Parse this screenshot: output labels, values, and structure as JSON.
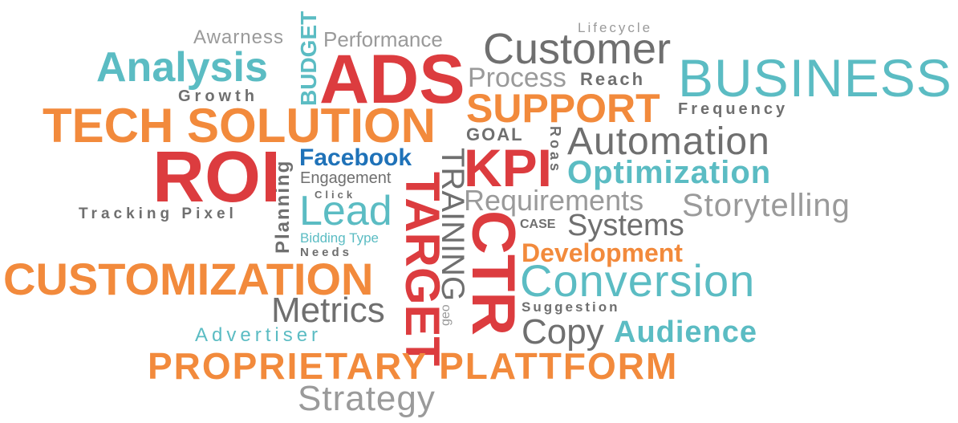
{
  "words": {
    "awarness": "Awarness",
    "budget": "BUDGET",
    "performance": "Performance",
    "lifecycle": "Lifecycle",
    "customer": "Customer",
    "analysis": "Analysis",
    "ads": "ADS",
    "business": "BUSINESS",
    "process": "Process",
    "reach": "Reach",
    "growth": "Growth",
    "support": "SUPPORT",
    "frequency": "Frequency",
    "tech_solution": "TECH SOLUTION",
    "goal": "GOAL",
    "roas": "Roas",
    "automation": "Automation",
    "planning": "Planning",
    "facebook": "Facebook",
    "roi": "ROI",
    "training": "TRAINING",
    "kpi": "KPI",
    "optimization": "Optimization",
    "engagement": "Engagement",
    "click": "Click",
    "requirements": "Requirements",
    "storytelling": "Storytelling",
    "tracking_pixel": "Tracking Pixel",
    "lead": "Lead",
    "target": "TARGET",
    "case": "CASE",
    "systems": "Systems",
    "bidding_type": "Bidding Type",
    "ctr": "CTR",
    "development": "Development",
    "needs": "Needs",
    "customization": "CUSTOMIZATION",
    "conversion": "Conversion",
    "metrics": "Metrics",
    "geo": "geo",
    "suggestion": "Suggestion",
    "advertiser": "Advertiser",
    "copy": "Copy",
    "audience": "Audience",
    "proprietary_plattform": "PROPRIETARY PLATTFORM",
    "strategy": "Strategy"
  },
  "colors": {
    "red": "#dc3c3f",
    "orange": "#f28a3c",
    "teal": "#5bbcc3",
    "gray": "#9a9a9a",
    "dark_gray": "#6f6f6f",
    "blue": "#1f72b8"
  }
}
